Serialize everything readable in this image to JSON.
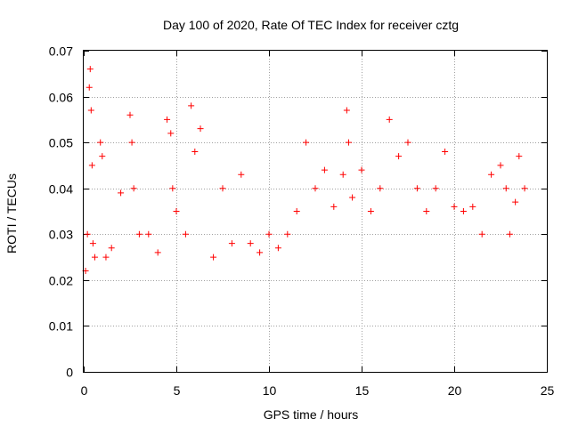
{
  "chart_data": {
    "type": "scatter",
    "title": "Day 100 of 2020, Rate Of TEC Index for receiver cztg",
    "xlabel": "GPS time / hours",
    "ylabel": "ROTI / TECUs",
    "xlim": [
      0,
      25
    ],
    "ylim": [
      0,
      0.07
    ],
    "xticks": [
      "0",
      "5",
      "10",
      "15",
      "20",
      "25"
    ],
    "yticks": [
      "0",
      "0.01",
      "0.02",
      "0.03",
      "0.04",
      "0.05",
      "0.06",
      "0.07"
    ],
    "grid": true,
    "marker": "+",
    "color": "#ff0000",
    "series": [
      {
        "name": "ROTI",
        "x": [
          0.1,
          0.2,
          0.3,
          0.35,
          0.4,
          0.45,
          0.5,
          0.6,
          0.9,
          1.0,
          1.2,
          1.5,
          2.0,
          2.5,
          2.6,
          2.7,
          3.0,
          3.5,
          4.0,
          4.5,
          4.7,
          4.8,
          5.0,
          5.5,
          5.8,
          6.0,
          6.3,
          7.0,
          7.5,
          8.0,
          8.5,
          9.0,
          9.5,
          10.0,
          10.5,
          11.0,
          11.5,
          12.0,
          12.5,
          13.0,
          13.5,
          14.0,
          14.2,
          14.3,
          14.5,
          15.0,
          15.5,
          16.0,
          16.5,
          17.0,
          17.5,
          18.0,
          18.5,
          19.0,
          19.5,
          20.0,
          20.5,
          21.0,
          21.5,
          22.0,
          22.5,
          22.8,
          23.0,
          23.3,
          23.5,
          23.8
        ],
        "y": [
          0.022,
          0.03,
          0.062,
          0.066,
          0.057,
          0.045,
          0.028,
          0.025,
          0.05,
          0.047,
          0.025,
          0.027,
          0.039,
          0.056,
          0.05,
          0.04,
          0.03,
          0.03,
          0.026,
          0.055,
          0.052,
          0.04,
          0.035,
          0.03,
          0.058,
          0.048,
          0.053,
          0.025,
          0.04,
          0.028,
          0.043,
          0.028,
          0.026,
          0.03,
          0.027,
          0.03,
          0.035,
          0.05,
          0.04,
          0.044,
          0.036,
          0.043,
          0.057,
          0.05,
          0.038,
          0.044,
          0.035,
          0.04,
          0.055,
          0.047,
          0.05,
          0.04,
          0.035,
          0.04,
          0.048,
          0.036,
          0.035,
          0.036,
          0.03,
          0.043,
          0.045,
          0.04,
          0.03,
          0.037,
          0.047,
          0.04
        ]
      }
    ]
  }
}
